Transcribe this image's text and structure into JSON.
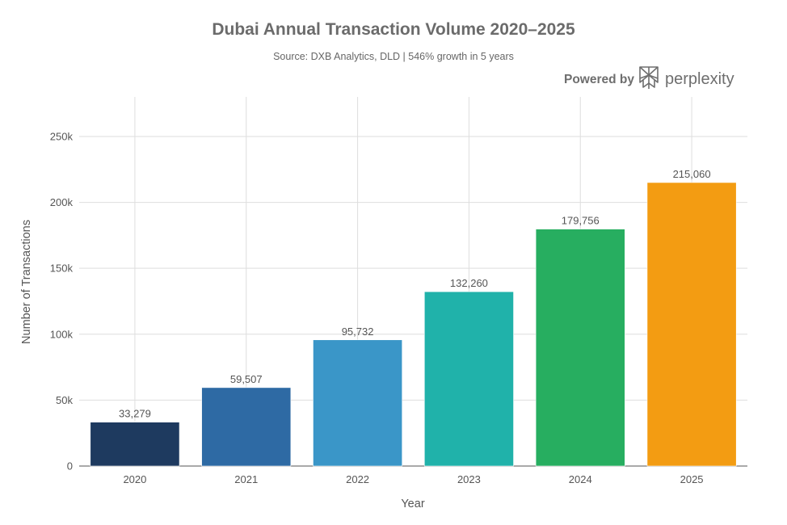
{
  "chart_data": {
    "type": "bar",
    "title": "Dubai Annual Transaction Volume 2020–2025",
    "subtitle": "Source: DXB Analytics, DLD | 546% growth in 5 years",
    "xlabel": "Year",
    "ylabel": "Number of Transactions",
    "categories": [
      "2020",
      "2021",
      "2022",
      "2023",
      "2024",
      "2025"
    ],
    "values": [
      33279,
      59507,
      95732,
      132260,
      179756,
      215060
    ],
    "data_labels": [
      "33,279",
      "59,507",
      "95,732",
      "132,260",
      "179,756",
      "215,060"
    ],
    "colors": [
      "#1e3a5f",
      "#2e6aa4",
      "#3a96c8",
      "#20b2aa",
      "#27ae60",
      "#f39c12"
    ],
    "ylim": [
      0,
      280000
    ],
    "yticks": [
      0,
      50000,
      100000,
      150000,
      200000,
      250000
    ],
    "ytick_labels": [
      "0",
      "50k",
      "100k",
      "150k",
      "200k",
      "250k"
    ],
    "grid": true,
    "legend": "none"
  },
  "branding": {
    "powered_by": "Powered by",
    "brand_name": "perplexity",
    "logo_icon": "perplexity-logo-icon"
  }
}
